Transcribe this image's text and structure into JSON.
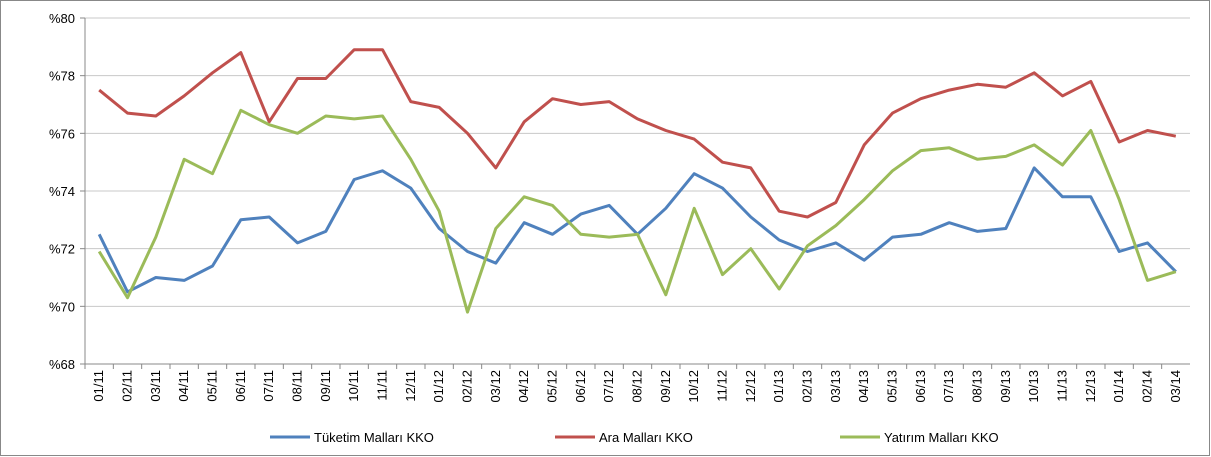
{
  "chart_data": {
    "type": "line",
    "categories": [
      "01/11",
      "02/11",
      "03/11",
      "04/11",
      "05/11",
      "06/11",
      "07/11",
      "08/11",
      "09/11",
      "10/11",
      "11/11",
      "12/11",
      "01/12",
      "02/12",
      "03/12",
      "04/12",
      "05/12",
      "06/12",
      "07/12",
      "08/12",
      "09/12",
      "10/12",
      "11/12",
      "12/12",
      "01/13",
      "02/13",
      "03/13",
      "04/13",
      "05/13",
      "06/13",
      "07/13",
      "08/13",
      "09/13",
      "10/13",
      "11/13",
      "12/13",
      "01/14",
      "02/14",
      "03/14"
    ],
    "series": [
      {
        "name": "Tüketim Malları KKO",
        "color": "#4f81bd",
        "values": [
          72.5,
          70.5,
          71.0,
          70.9,
          71.4,
          73.0,
          73.1,
          72.2,
          72.6,
          74.4,
          74.7,
          74.1,
          72.7,
          71.9,
          71.5,
          72.9,
          72.5,
          73.2,
          73.5,
          72.5,
          73.4,
          74.6,
          74.1,
          73.1,
          72.3,
          71.9,
          72.2,
          71.6,
          72.4,
          72.5,
          72.9,
          72.6,
          72.7,
          74.8,
          73.8,
          73.8,
          71.9,
          72.2,
          71.2
        ]
      },
      {
        "name": "Ara Malları KKO",
        "color": "#c0504d",
        "values": [
          77.5,
          76.7,
          76.6,
          77.3,
          78.1,
          78.8,
          76.4,
          77.9,
          77.9,
          78.9,
          78.9,
          77.1,
          76.9,
          76.0,
          74.8,
          76.4,
          77.2,
          77.0,
          77.1,
          76.5,
          76.1,
          75.8,
          75.0,
          74.8,
          73.3,
          73.1,
          73.6,
          75.6,
          76.7,
          77.2,
          77.5,
          77.7,
          77.6,
          78.1,
          77.3,
          77.8,
          75.7,
          76.1,
          75.9
        ]
      },
      {
        "name": "Yatırım Malları KKO",
        "color": "#9bbb59",
        "values": [
          71.9,
          70.3,
          72.4,
          75.1,
          74.6,
          76.8,
          76.3,
          76.0,
          76.6,
          76.5,
          76.6,
          75.1,
          73.3,
          69.8,
          72.7,
          73.8,
          73.5,
          72.5,
          72.4,
          72.5,
          70.4,
          73.4,
          71.1,
          72.0,
          70.6,
          72.1,
          72.8,
          73.7,
          74.7,
          75.4,
          75.5,
          75.1,
          75.2,
          75.6,
          74.9,
          76.1,
          73.7,
          70.9,
          71.2
        ]
      }
    ],
    "ylim": [
      68,
      80
    ],
    "yticks": [
      {
        "value": 68,
        "label": "%68"
      },
      {
        "value": 70,
        "label": "%70"
      },
      {
        "value": 72,
        "label": "%72"
      },
      {
        "value": 74,
        "label": "%74"
      },
      {
        "value": 76,
        "label": "%76"
      },
      {
        "value": 78,
        "label": "%78"
      },
      {
        "value": 80,
        "label": "%80"
      }
    ],
    "grid": true,
    "legend": "bottom"
  }
}
